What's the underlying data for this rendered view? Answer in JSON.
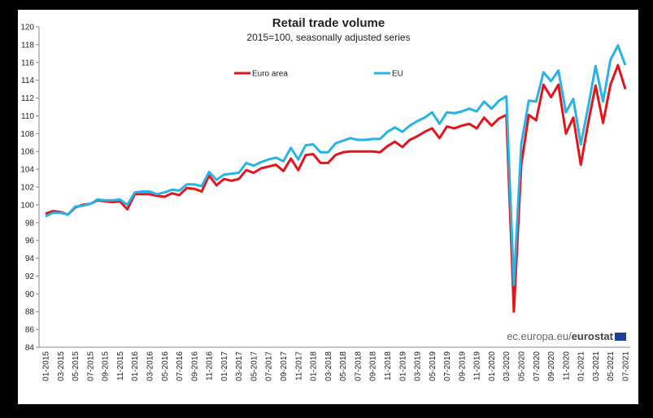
{
  "chart_data": {
    "type": "line",
    "title": "Retail trade volume",
    "subtitle": "2015=100, seasonally adjusted series",
    "source": {
      "site": "ec.europa.eu/",
      "brand": "eurostat"
    },
    "categories": [
      "01-2015",
      null,
      "03-2015",
      null,
      "05-2015",
      null,
      "07-2015",
      null,
      "09-2015",
      null,
      "11-2015",
      null,
      "01-2016",
      null,
      "03-2016",
      null,
      "05-2016",
      null,
      "07-2016",
      null,
      "09-2016",
      null,
      "11-2016",
      null,
      "01-2017",
      null,
      "03-2017",
      null,
      "05-2017",
      null,
      "07-2017",
      null,
      "09-2017",
      null,
      "11-2017",
      null,
      "01-2018",
      null,
      "03-2018",
      null,
      "05-2018",
      null,
      "07-2018",
      null,
      "09-2018",
      null,
      "11-2018",
      null,
      "01-2019",
      null,
      "03-2019",
      null,
      "05-2019",
      null,
      "07-2019",
      null,
      "09-2019",
      null,
      "11-2019",
      null,
      "01-2020",
      null,
      "03-2020",
      null,
      "05-2020",
      null,
      "07-2020",
      null,
      "09-2020",
      null,
      "11-2020",
      null,
      "01-2021",
      null,
      "03-2021",
      null,
      "05-2021",
      null,
      "07-2021"
    ],
    "series": [
      {
        "name": "Euro area",
        "color": "#e3141b",
        "values": [
          99.0,
          99.3,
          99.2,
          98.9,
          99.7,
          100.0,
          100.1,
          100.5,
          100.4,
          100.3,
          100.4,
          99.5,
          101.2,
          101.2,
          101.2,
          101.0,
          100.9,
          101.3,
          101.1,
          101.9,
          101.8,
          101.5,
          103.3,
          102.2,
          102.9,
          102.7,
          102.9,
          103.9,
          103.6,
          104.1,
          104.3,
          104.5,
          103.8,
          105.2,
          103.9,
          105.6,
          105.7,
          104.7,
          104.7,
          105.6,
          105.9,
          106.0,
          106.0,
          106.0,
          106.0,
          105.9,
          106.6,
          107.1,
          106.5,
          107.3,
          107.7,
          108.2,
          108.6,
          107.5,
          108.8,
          108.6,
          108.9,
          109.1,
          108.6,
          109.8,
          108.9,
          109.7,
          110.1,
          88.0,
          104.5,
          110.1,
          109.5,
          113.5,
          112.1,
          113.5,
          108.0,
          109.8,
          104.5,
          109.2,
          113.4,
          109.2,
          113.5,
          115.7,
          113.0
        ]
      },
      {
        "name": "EU",
        "color": "#27b3e6",
        "values": [
          98.7,
          99.1,
          99.1,
          98.9,
          99.8,
          99.9,
          100.1,
          100.6,
          100.5,
          100.5,
          100.6,
          100.0,
          101.4,
          101.5,
          101.5,
          101.2,
          101.4,
          101.7,
          101.6,
          102.3,
          102.3,
          102.1,
          103.7,
          102.8,
          103.4,
          103.5,
          103.6,
          104.7,
          104.4,
          104.8,
          105.1,
          105.3,
          104.9,
          106.4,
          105.1,
          106.7,
          106.8,
          105.9,
          105.9,
          106.9,
          107.2,
          107.5,
          107.3,
          107.3,
          107.4,
          107.4,
          108.2,
          108.7,
          108.2,
          108.9,
          109.4,
          109.8,
          110.4,
          109.1,
          110.4,
          110.3,
          110.5,
          110.8,
          110.5,
          111.6,
          110.8,
          111.7,
          112.2,
          91.0,
          106.8,
          111.7,
          111.6,
          114.9,
          113.9,
          115.1,
          110.4,
          111.9,
          106.8,
          111.0,
          115.6,
          111.6,
          116.3,
          117.9,
          115.7
        ]
      }
    ],
    "ylim": [
      84,
      120
    ],
    "yticks": [
      84,
      86,
      88,
      90,
      92,
      94,
      96,
      98,
      100,
      102,
      104,
      106,
      108,
      110,
      112,
      114,
      116,
      118,
      120
    ],
    "grid": false
  }
}
